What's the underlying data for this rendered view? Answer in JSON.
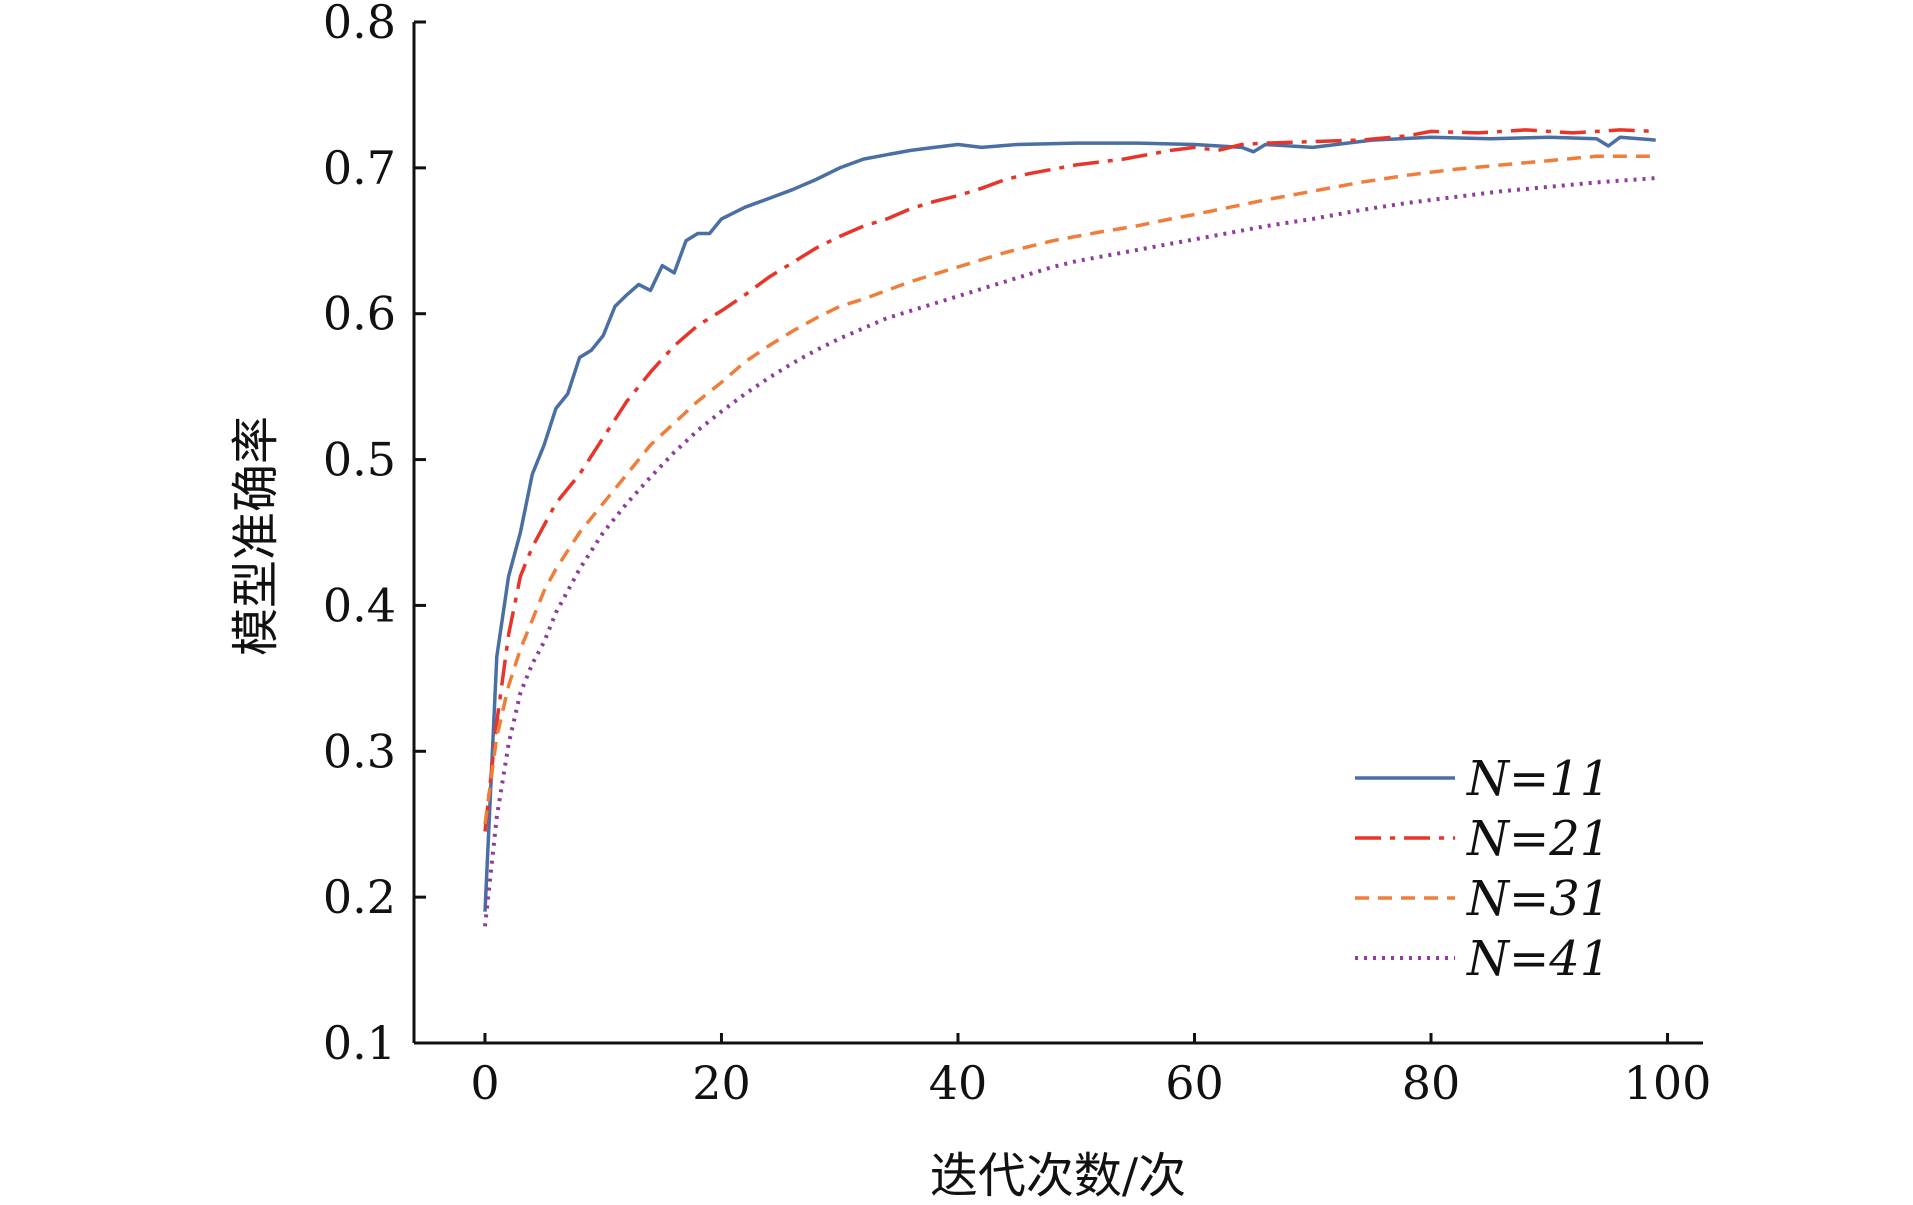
{
  "chart_data": {
    "type": "line",
    "title": "",
    "xlabel": "迭代次数/次",
    "ylabel": "模型准确率",
    "xlim": [
      -6,
      103
    ],
    "ylim": [
      0.1,
      0.8
    ],
    "x_ticks": [
      0,
      20,
      40,
      60,
      80,
      100
    ],
    "x_tick_labels": [
      "0",
      "20",
      "40",
      "60",
      "80",
      "100"
    ],
    "y_ticks": [
      0.1,
      0.2,
      0.3,
      0.4,
      0.5,
      0.6,
      0.7,
      0.8
    ],
    "y_tick_labels": [
      "0.1",
      "0.2",
      "0.3",
      "0.4",
      "0.5",
      "0.6",
      "0.7",
      "0.8"
    ],
    "grid": false,
    "legend_position": "bottom-right",
    "series": [
      {
        "name": "N=11",
        "color": "#4a6fa5",
        "style": "solid",
        "points": [
          [
            0,
            0.19
          ],
          [
            1,
            0.365
          ],
          [
            2,
            0.42
          ],
          [
            3,
            0.45
          ],
          [
            4,
            0.49
          ],
          [
            5,
            0.51
          ],
          [
            6,
            0.535
          ],
          [
            7,
            0.545
          ],
          [
            8,
            0.57
          ],
          [
            9,
            0.575
          ],
          [
            10,
            0.585
          ],
          [
            11,
            0.605
          ],
          [
            12,
            0.613
          ],
          [
            13,
            0.62
          ],
          [
            14,
            0.616
          ],
          [
            15,
            0.633
          ],
          [
            16,
            0.628
          ],
          [
            17,
            0.65
          ],
          [
            18,
            0.655
          ],
          [
            19,
            0.655
          ],
          [
            20,
            0.665
          ],
          [
            22,
            0.673
          ],
          [
            24,
            0.679
          ],
          [
            26,
            0.685
          ],
          [
            28,
            0.692
          ],
          [
            30,
            0.7
          ],
          [
            32,
            0.706
          ],
          [
            34,
            0.709
          ],
          [
            36,
            0.712
          ],
          [
            38,
            0.714
          ],
          [
            40,
            0.716
          ],
          [
            42,
            0.714
          ],
          [
            45,
            0.716
          ],
          [
            50,
            0.717
          ],
          [
            55,
            0.717
          ],
          [
            60,
            0.716
          ],
          [
            64,
            0.714
          ],
          [
            65,
            0.711
          ],
          [
            66,
            0.716
          ],
          [
            70,
            0.714
          ],
          [
            75,
            0.719
          ],
          [
            80,
            0.721
          ],
          [
            85,
            0.72
          ],
          [
            90,
            0.721
          ],
          [
            94,
            0.72
          ],
          [
            95,
            0.715
          ],
          [
            96,
            0.721
          ],
          [
            99,
            0.719
          ]
        ]
      },
      {
        "name": "N=21",
        "color": "#e8352a",
        "style": "dashdot",
        "points": [
          [
            0,
            0.245
          ],
          [
            1,
            0.32
          ],
          [
            2,
            0.38
          ],
          [
            3,
            0.42
          ],
          [
            4,
            0.44
          ],
          [
            5,
            0.455
          ],
          [
            6,
            0.47
          ],
          [
            8,
            0.49
          ],
          [
            10,
            0.515
          ],
          [
            12,
            0.54
          ],
          [
            14,
            0.56
          ],
          [
            16,
            0.578
          ],
          [
            18,
            0.592
          ],
          [
            20,
            0.602
          ],
          [
            22,
            0.613
          ],
          [
            24,
            0.625
          ],
          [
            26,
            0.635
          ],
          [
            28,
            0.645
          ],
          [
            30,
            0.653
          ],
          [
            32,
            0.66
          ],
          [
            34,
            0.665
          ],
          [
            36,
            0.672
          ],
          [
            38,
            0.677
          ],
          [
            40,
            0.681
          ],
          [
            42,
            0.686
          ],
          [
            44,
            0.692
          ],
          [
            46,
            0.696
          ],
          [
            48,
            0.699
          ],
          [
            50,
            0.702
          ],
          [
            54,
            0.706
          ],
          [
            58,
            0.712
          ],
          [
            60,
            0.714
          ],
          [
            62,
            0.712
          ],
          [
            64,
            0.716
          ],
          [
            66,
            0.717
          ],
          [
            70,
            0.718
          ],
          [
            74,
            0.719
          ],
          [
            78,
            0.722
          ],
          [
            80,
            0.725
          ],
          [
            84,
            0.724
          ],
          [
            88,
            0.726
          ],
          [
            92,
            0.724
          ],
          [
            96,
            0.726
          ],
          [
            99,
            0.725
          ]
        ]
      },
      {
        "name": "N=31",
        "color": "#f07e3a",
        "style": "dashed",
        "points": [
          [
            0,
            0.25
          ],
          [
            1,
            0.31
          ],
          [
            2,
            0.345
          ],
          [
            3,
            0.37
          ],
          [
            4,
            0.39
          ],
          [
            5,
            0.41
          ],
          [
            6,
            0.425
          ],
          [
            8,
            0.45
          ],
          [
            10,
            0.47
          ],
          [
            12,
            0.49
          ],
          [
            14,
            0.51
          ],
          [
            16,
            0.525
          ],
          [
            18,
            0.54
          ],
          [
            20,
            0.553
          ],
          [
            22,
            0.567
          ],
          [
            24,
            0.578
          ],
          [
            26,
            0.588
          ],
          [
            28,
            0.597
          ],
          [
            30,
            0.605
          ],
          [
            32,
            0.61
          ],
          [
            34,
            0.616
          ],
          [
            36,
            0.622
          ],
          [
            38,
            0.627
          ],
          [
            40,
            0.632
          ],
          [
            42,
            0.637
          ],
          [
            44,
            0.642
          ],
          [
            46,
            0.646
          ],
          [
            48,
            0.65
          ],
          [
            50,
            0.653
          ],
          [
            52,
            0.656
          ],
          [
            55,
            0.66
          ],
          [
            58,
            0.665
          ],
          [
            60,
            0.668
          ],
          [
            63,
            0.673
          ],
          [
            66,
            0.678
          ],
          [
            70,
            0.684
          ],
          [
            74,
            0.69
          ],
          [
            78,
            0.695
          ],
          [
            82,
            0.699
          ],
          [
            86,
            0.702
          ],
          [
            90,
            0.705
          ],
          [
            94,
            0.708
          ],
          [
            99,
            0.708
          ]
        ]
      },
      {
        "name": "N=41",
        "color": "#8e3e9a",
        "style": "dotted",
        "points": [
          [
            0,
            0.18
          ],
          [
            1,
            0.255
          ],
          [
            2,
            0.305
          ],
          [
            3,
            0.34
          ],
          [
            4,
            0.36
          ],
          [
            5,
            0.375
          ],
          [
            6,
            0.395
          ],
          [
            8,
            0.425
          ],
          [
            10,
            0.45
          ],
          [
            12,
            0.47
          ],
          [
            14,
            0.488
          ],
          [
            16,
            0.505
          ],
          [
            18,
            0.52
          ],
          [
            20,
            0.533
          ],
          [
            22,
            0.545
          ],
          [
            24,
            0.556
          ],
          [
            26,
            0.566
          ],
          [
            28,
            0.575
          ],
          [
            30,
            0.583
          ],
          [
            32,
            0.59
          ],
          [
            34,
            0.597
          ],
          [
            36,
            0.602
          ],
          [
            38,
            0.607
          ],
          [
            40,
            0.612
          ],
          [
            42,
            0.617
          ],
          [
            44,
            0.622
          ],
          [
            46,
            0.627
          ],
          [
            48,
            0.632
          ],
          [
            50,
            0.636
          ],
          [
            54,
            0.642
          ],
          [
            58,
            0.648
          ],
          [
            62,
            0.654
          ],
          [
            66,
            0.66
          ],
          [
            70,
            0.665
          ],
          [
            74,
            0.671
          ],
          [
            78,
            0.676
          ],
          [
            82,
            0.68
          ],
          [
            86,
            0.684
          ],
          [
            90,
            0.687
          ],
          [
            94,
            0.69
          ],
          [
            99,
            0.693
          ]
        ]
      }
    ]
  }
}
